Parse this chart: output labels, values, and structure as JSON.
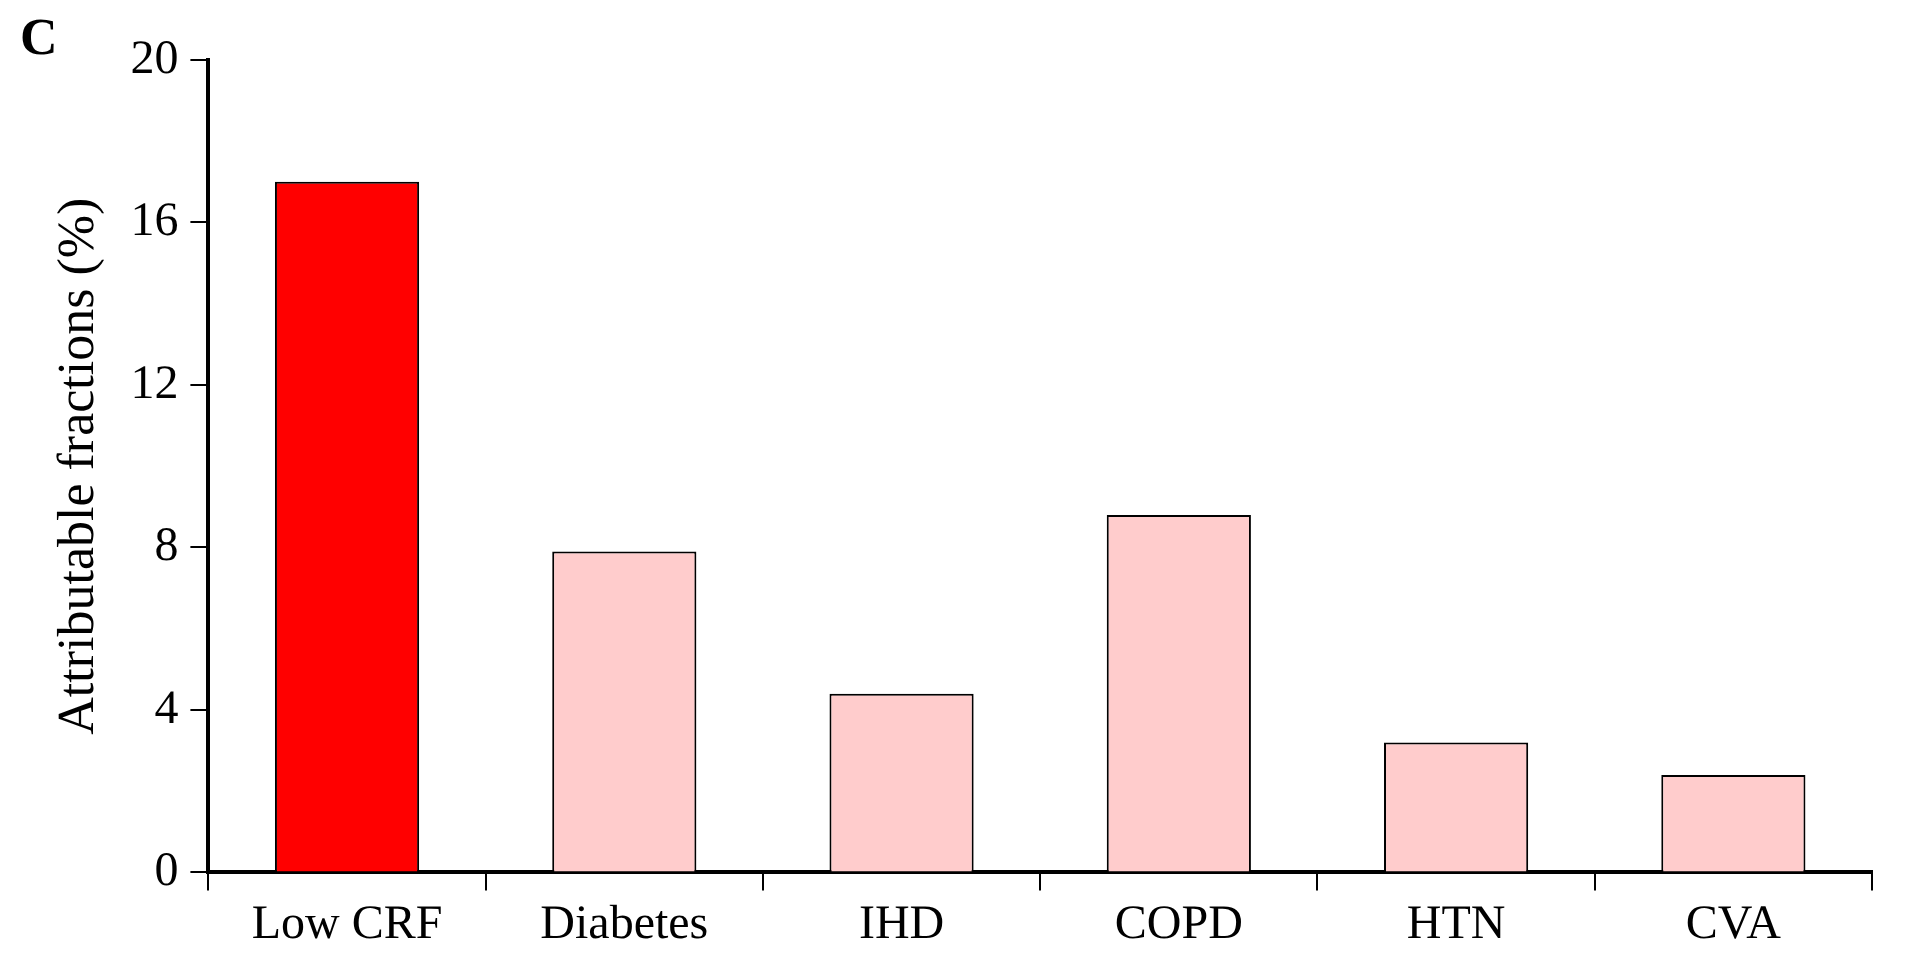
{
  "chart_data": {
    "type": "bar",
    "ylabel": "Attributable fractions (%)",
    "annotations": [
      "C"
    ],
    "categories": [
      "Low CRF",
      "Diabetes",
      "IHD",
      "COPD",
      "HTN",
      "CVA"
    ],
    "values": [
      17.0,
      7.9,
      4.4,
      8.8,
      3.2,
      2.4
    ],
    "colors": [
      "#ff0000",
      "#ffcccc",
      "#ffcccc",
      "#ffcccc",
      "#ffcccc",
      "#ffcccc"
    ],
    "ylim": [
      0,
      20
    ],
    "yticks": [
      0,
      4,
      8,
      12,
      16,
      20
    ],
    "grid": false,
    "legend": false
  }
}
